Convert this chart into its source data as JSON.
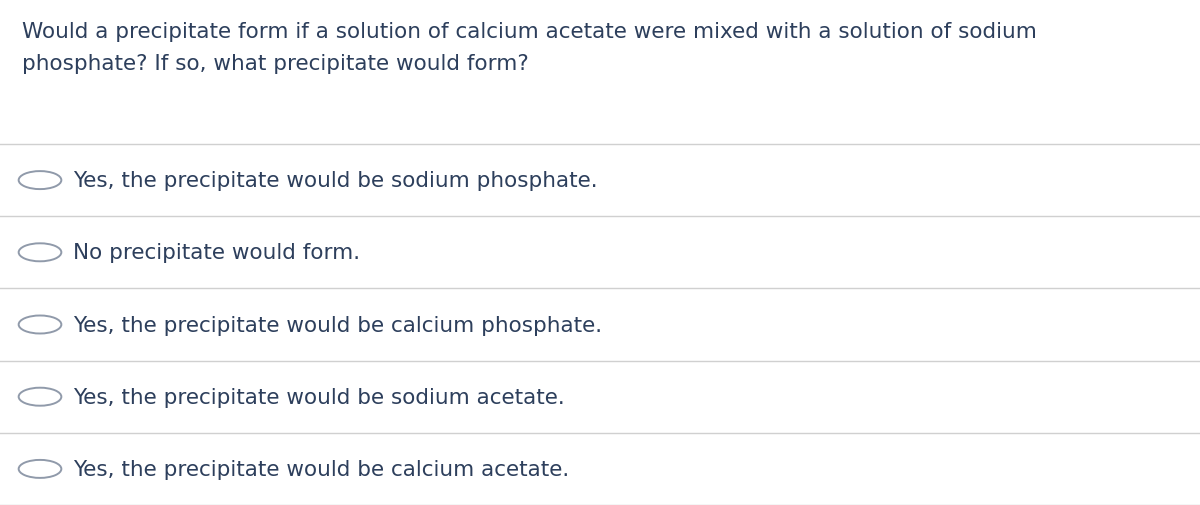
{
  "question_line1": "Would a precipitate form if a solution of calcium acetate were mixed with a solution of sodium",
  "question_line2": "phosphate? If so, what precipitate would form?",
  "options": [
    "Yes, the precipitate would be sodium phosphate.",
    "No precipitate would form.",
    "Yes, the precipitate would be calcium phosphate.",
    "Yes, the precipitate would be sodium acetate.",
    "Yes, the precipitate would be calcium acetate."
  ],
  "background_color": "#ffffff",
  "text_color": "#2d3f5c",
  "line_color": "#d0d0d0",
  "question_fontsize": 15.5,
  "option_fontsize": 15.5,
  "circle_edge_color": "#909aaa",
  "circle_face_color": "#ffffff",
  "circle_linewidth": 1.4
}
